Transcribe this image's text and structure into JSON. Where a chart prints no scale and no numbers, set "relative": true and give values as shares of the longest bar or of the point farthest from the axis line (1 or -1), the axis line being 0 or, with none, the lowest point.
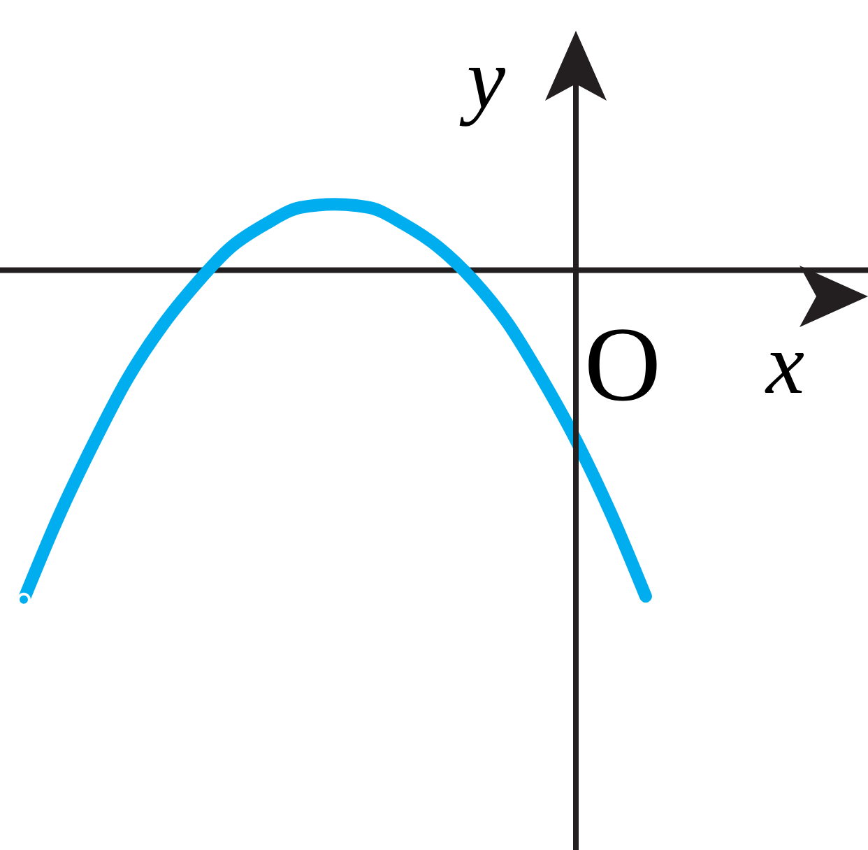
{
  "chart_data": {
    "type": "line",
    "relative": true,
    "xlabel": "x",
    "ylabel": "y",
    "annotations": [
      "O"
    ],
    "marker": "none",
    "line_style": "solid",
    "categories": [
      null,
      null,
      null,
      null,
      null,
      null,
      null,
      null,
      null,
      null,
      null,
      null,
      null,
      null,
      null,
      null,
      null,
      null,
      null
    ],
    "series": [
      {
        "color": "#00aeef",
        "values": [
          -1.0,
          -0.75,
          -0.53,
          -0.33,
          -0.17,
          -0.04,
          0.07,
          0.14,
          0.19,
          0.2,
          0.19,
          0.14,
          0.07,
          -0.03,
          -0.16,
          -0.33,
          -0.52,
          -0.74,
          -0.99
        ]
      }
    ]
  }
}
